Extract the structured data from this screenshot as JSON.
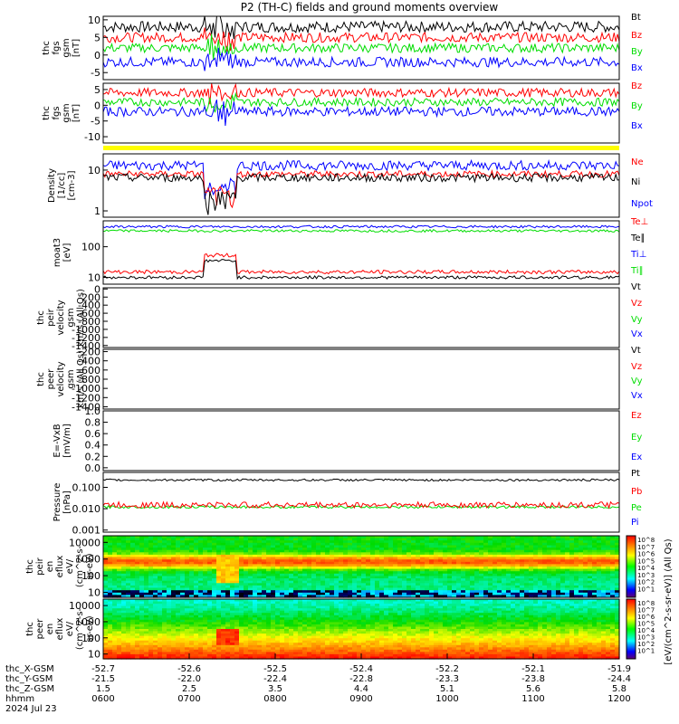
{
  "title": "P2 (TH-C) fields and ground moments overview",
  "colors": {
    "black": "#000000",
    "red": "#ff0000",
    "green": "#00dd00",
    "blue": "#0000ff",
    "yellow": "#ffff00"
  },
  "chart_data": [
    {
      "id": "p1",
      "type": "line",
      "ylabel": [
        "thc",
        "fgs",
        "gsm",
        "[nT]"
      ],
      "yticks": [
        "10",
        "5",
        "0",
        "-5"
      ],
      "ylim": [
        -7,
        11
      ],
      "legend": [
        {
          "label": "Bt",
          "color": "#000000"
        },
        {
          "label": "Bz",
          "color": "#ff0000"
        },
        {
          "label": "By",
          "color": "#00dd00"
        },
        {
          "label": "Bx",
          "color": "#0000ff"
        }
      ],
      "series": [
        {
          "name": "Bt",
          "base": 8,
          "noise": 1.6
        },
        {
          "name": "Bz",
          "base": 5,
          "noise": 1.4
        },
        {
          "name": "By",
          "base": 2,
          "noise": 1.3
        },
        {
          "name": "Bx",
          "base": -2,
          "noise": 1.4
        }
      ]
    },
    {
      "id": "p2",
      "type": "line",
      "ylabel": [
        "thc",
        "fgs",
        "gsm",
        "[nT]"
      ],
      "yticks": [
        "5",
        "0",
        "-5",
        "-10"
      ],
      "ylim": [
        -12,
        7
      ],
      "legend": [
        {
          "label": "Bz",
          "color": "#ff0000"
        },
        {
          "label": "By",
          "color": "#00dd00"
        },
        {
          "label": "Bx",
          "color": "#0000ff"
        }
      ],
      "series": [
        {
          "name": "Bz",
          "base": 4,
          "noise": 1.4
        },
        {
          "name": "By",
          "base": 1,
          "noise": 1.3
        },
        {
          "name": "Bx",
          "base": -2,
          "noise": 1.5
        }
      ]
    },
    {
      "id": "p3",
      "type": "line",
      "scale": "log",
      "ylabel": [
        "Density",
        "[1/cc]",
        "[cm-3]"
      ],
      "yticks": [
        "10",
        "1"
      ],
      "ylim": [
        0.7,
        25
      ],
      "legend": [
        {
          "label": "Ne",
          "color": "#ff0000"
        },
        {
          "label": "Ni",
          "color": "#000000"
        },
        {
          "label": "Npot",
          "color": "#0000ff"
        }
      ],
      "series": [
        {
          "name": "Npot",
          "base": 13,
          "noise": 0.12
        },
        {
          "name": "Ne",
          "base": 8,
          "noise": 0.08
        },
        {
          "name": "Ni",
          "base": 6.5,
          "noise": 0.1
        }
      ]
    },
    {
      "id": "p4",
      "type": "line",
      "scale": "log",
      "ylabel": [
        "moat3",
        "[eV]"
      ],
      "yticks": [
        "100",
        "10"
      ],
      "ylim": [
        6,
        700
      ],
      "legend": [
        {
          "label": "Te⊥",
          "color": "#ff0000"
        },
        {
          "label": "Te∥",
          "color": "#000000"
        },
        {
          "label": "Ti⊥",
          "color": "#0000ff"
        },
        {
          "label": "Ti∥",
          "color": "#00dd00"
        }
      ],
      "series": [
        {
          "name": "Ti⊥",
          "base": 450,
          "noise": 0.04
        },
        {
          "name": "Ti∥",
          "base": 330,
          "noise": 0.04
        },
        {
          "name": "Te⊥",
          "base": 15,
          "noise": 0.06
        },
        {
          "name": "Te∥",
          "base": 10,
          "noise": 0.05
        }
      ]
    },
    {
      "id": "p5",
      "type": "line",
      "ylabel": [
        "thc",
        "peir",
        "velocity",
        "gsm",
        "km/s (All Qs)"
      ],
      "yticks": [
        "0",
        "-200",
        "-400",
        "-600",
        "-800",
        "-1000",
        "-1200",
        "-1400"
      ],
      "ylim": [
        -1450,
        30
      ],
      "legend": [
        {
          "label": "Vt",
          "color": "#000000"
        },
        {
          "label": "Vz",
          "color": "#ff0000"
        },
        {
          "label": "Vy",
          "color": "#00dd00"
        },
        {
          "label": "Vx",
          "color": "#0000ff"
        }
      ],
      "series": []
    },
    {
      "id": "p6",
      "type": "line",
      "ylabel": [
        "thc",
        "peer",
        "velocity",
        "gsm",
        "km/s (All Qs)"
      ],
      "yticks": [
        "-200",
        "-400",
        "-600",
        "-800",
        "-1000",
        "-1200",
        "-1400"
      ],
      "ylim": [
        -1450,
        -150
      ],
      "legend": [
        {
          "label": "Vt",
          "color": "#000000"
        },
        {
          "label": "Vz",
          "color": "#ff0000"
        },
        {
          "label": "Vy",
          "color": "#00dd00"
        },
        {
          "label": "Vx",
          "color": "#0000ff"
        }
      ],
      "series": []
    },
    {
      "id": "p7",
      "type": "line",
      "ylabel": [
        "E=-VxB",
        "[mV/m]"
      ],
      "yticks": [
        "1.0",
        "0.8",
        "0.6",
        "0.4",
        "0.2",
        "0.0"
      ],
      "ylim": [
        -0.05,
        1.0
      ],
      "legend": [
        {
          "label": "Ez",
          "color": "#ff0000"
        },
        {
          "label": "Ey",
          "color": "#00dd00"
        },
        {
          "label": "Ex",
          "color": "#0000ff"
        }
      ],
      "series": []
    },
    {
      "id": "p8",
      "type": "line",
      "scale": "log",
      "ylabel": [
        "Pressure",
        "[nPa]"
      ],
      "yticks": [
        "0.100",
        "0.010",
        "0.001"
      ],
      "ylim": [
        0.0008,
        0.5
      ],
      "legend": [
        {
          "label": "Pt",
          "color": "#000000"
        },
        {
          "label": "Pb",
          "color": "#ff0000"
        },
        {
          "label": "Pe",
          "color": "#00dd00"
        },
        {
          "label": "Pi",
          "color": "#0000ff"
        }
      ],
      "series": [
        {
          "name": "Pt",
          "base": 0.22,
          "noise": 0.05
        },
        {
          "name": "Pe",
          "base": 0.012,
          "noise": 0.06
        },
        {
          "name": "Pb",
          "base": 0.015,
          "noise": 0.14
        }
      ]
    },
    {
      "id": "p9",
      "type": "heatmap",
      "scale": "log",
      "ylabel": [
        "thc",
        "peir",
        "en",
        "eflux",
        "eV/",
        "(cm^2-s-",
        "sr-eV)"
      ],
      "yticks": [
        "10000",
        "1000",
        "100",
        "10"
      ],
      "ylim": [
        5,
        25000
      ],
      "colorbar": {
        "label": "[eV/(cm^2-s-sr-eV)] (All Qs)",
        "ticks": [
          "10^8",
          "10^7",
          "10^6",
          "10^5",
          "10^4",
          "10^3",
          "10^2",
          "10^1"
        ]
      }
    },
    {
      "id": "p10",
      "type": "heatmap",
      "scale": "log",
      "ylabel": [
        "thc",
        "peer",
        "en",
        "eflux",
        "eV/",
        "(cm^2-s-",
        "sr-eV)"
      ],
      "yticks": [
        "10000",
        "1000",
        "100",
        "10"
      ],
      "ylim": [
        5,
        25000
      ],
      "colorbar": {
        "label": "[eV/(cm^2-s-sr-eV)] (All Qs)",
        "ticks": [
          "10^8",
          "10^7",
          "10^6",
          "10^5",
          "10^4",
          "10^3",
          "10^2",
          "10^1"
        ]
      }
    }
  ],
  "xaxis": {
    "rows": [
      {
        "label": "thc_X-GSM",
        "values": [
          "-52.7",
          "-52.6",
          "-52.5",
          "-52.4",
          "-52.2",
          "-52.1",
          "-51.9"
        ]
      },
      {
        "label": "thc_Y-GSM",
        "values": [
          "-21.5",
          "-22.0",
          "-22.4",
          "-22.8",
          "-23.3",
          "-23.8",
          "-24.4"
        ]
      },
      {
        "label": "thc_Z-GSM",
        "values": [
          "1.5",
          "2.5",
          "3.5",
          "4.4",
          "5.1",
          "5.6",
          "5.8"
        ]
      },
      {
        "label": "hhmm",
        "values": [
          "0600",
          "0700",
          "0800",
          "0900",
          "1000",
          "1100",
          "1200"
        ]
      }
    ],
    "date": "2024 Jul 23"
  }
}
